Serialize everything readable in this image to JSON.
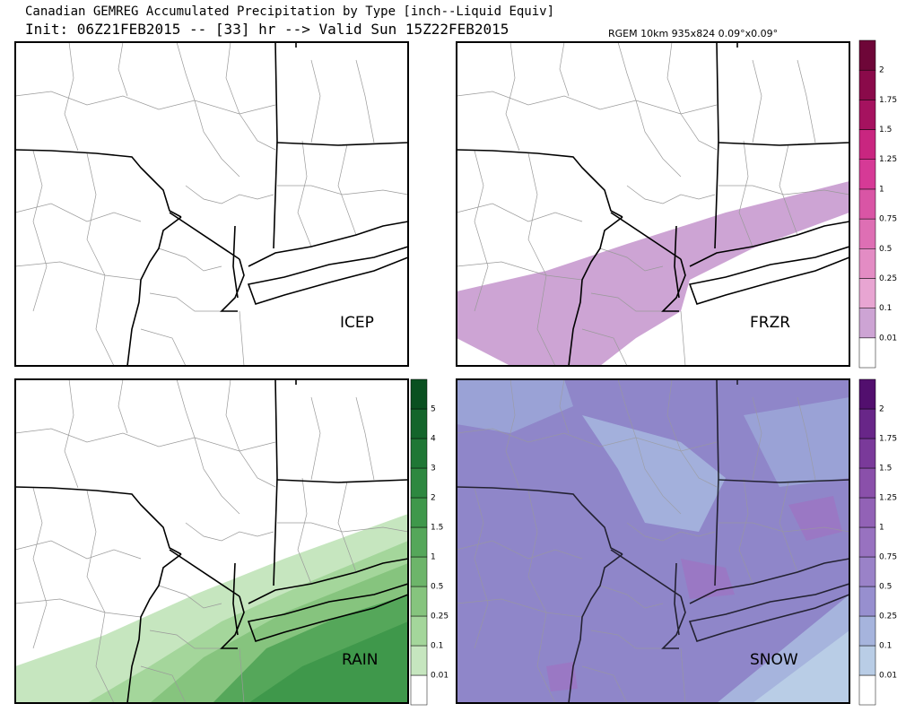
{
  "header": {
    "title": "Canadian GEMREG Accumulated Precipitation by Type [inch--Liquid Equiv]",
    "subtitle": "Init: 06Z21FEB2015 -- [33] hr --> Valid Sun 15Z22FEB2015",
    "model_info": "RGEM 10km 935x824 0.09°x0.09°"
  },
  "panels": [
    {
      "label": "ICEP"
    },
    {
      "label": "FRZR"
    },
    {
      "label": "RAIN"
    },
    {
      "label": "SNOW"
    }
  ],
  "colorbars": [
    {
      "labels": [
        "0.01",
        "0.1",
        "0.25",
        "0.5",
        "0.75",
        "1",
        "1.25",
        "1.5",
        "1.75",
        "2"
      ],
      "colors": [
        "#ffffff",
        "#cda4d4",
        "#e8a5d2",
        "#e38cc4",
        "#de6fb4",
        "#d955a5",
        "#d63a96",
        "#c92680",
        "#a5125f",
        "#8a0a4a",
        "#6e0638"
      ]
    },
    {
      "labels": [
        "0.01",
        "0.1",
        "0.25",
        "0.5",
        "1",
        "1.5",
        "2",
        "3",
        "4",
        "5"
      ],
      "colors": [
        "#ffffff",
        "#c6e6bf",
        "#a4d69b",
        "#86c47e",
        "#6db56a",
        "#55a75a",
        "#3f984b",
        "#2e8840",
        "#1f7735",
        "#14652b",
        "#0a5020"
      ]
    },
    {
      "labels": [
        "0.01",
        "0.1",
        "0.25",
        "0.5",
        "0.75",
        "1",
        "1.25",
        "1.5",
        "1.75",
        "2"
      ],
      "colors": [
        "#ffffff",
        "#b9cde6",
        "#a6b4dd",
        "#978fcf",
        "#9a82c8",
        "#9872c0",
        "#9262b6",
        "#8a50aa",
        "#7a3a9a",
        "#682688",
        "#520f6e"
      ]
    }
  ]
}
